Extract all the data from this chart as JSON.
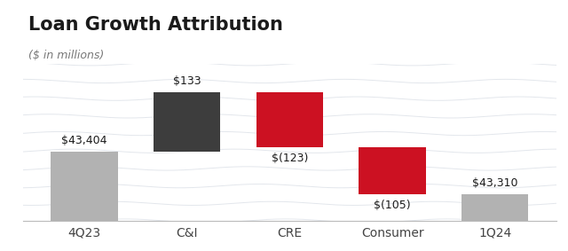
{
  "title": "Loan Growth Attribution",
  "subtitle": "($ in millions)",
  "categories": [
    "4Q23",
    "C&I",
    "CRE",
    "Consumer",
    "1Q24"
  ],
  "base_value": 43404,
  "values": [
    43404,
    133,
    -123,
    -105,
    43310
  ],
  "bar_colors": [
    "#b2b2b2",
    "#3d3d3d",
    "#cc1122",
    "#cc1122",
    "#b2b2b2"
  ],
  "value_labels": [
    "$43,404",
    "$133",
    "$(123)",
    "$(105)",
    "$43,310"
  ],
  "label_above": [
    true,
    true,
    false,
    false,
    true
  ],
  "title_fontsize": 15,
  "subtitle_fontsize": 9,
  "label_fontsize": 9,
  "xlabel_fontsize": 10,
  "bg_color": "#ffffff",
  "bar_width": 0.65,
  "wave_color": "#e0e4ea",
  "wave_amplitude": 0.012,
  "wave_count": 10
}
